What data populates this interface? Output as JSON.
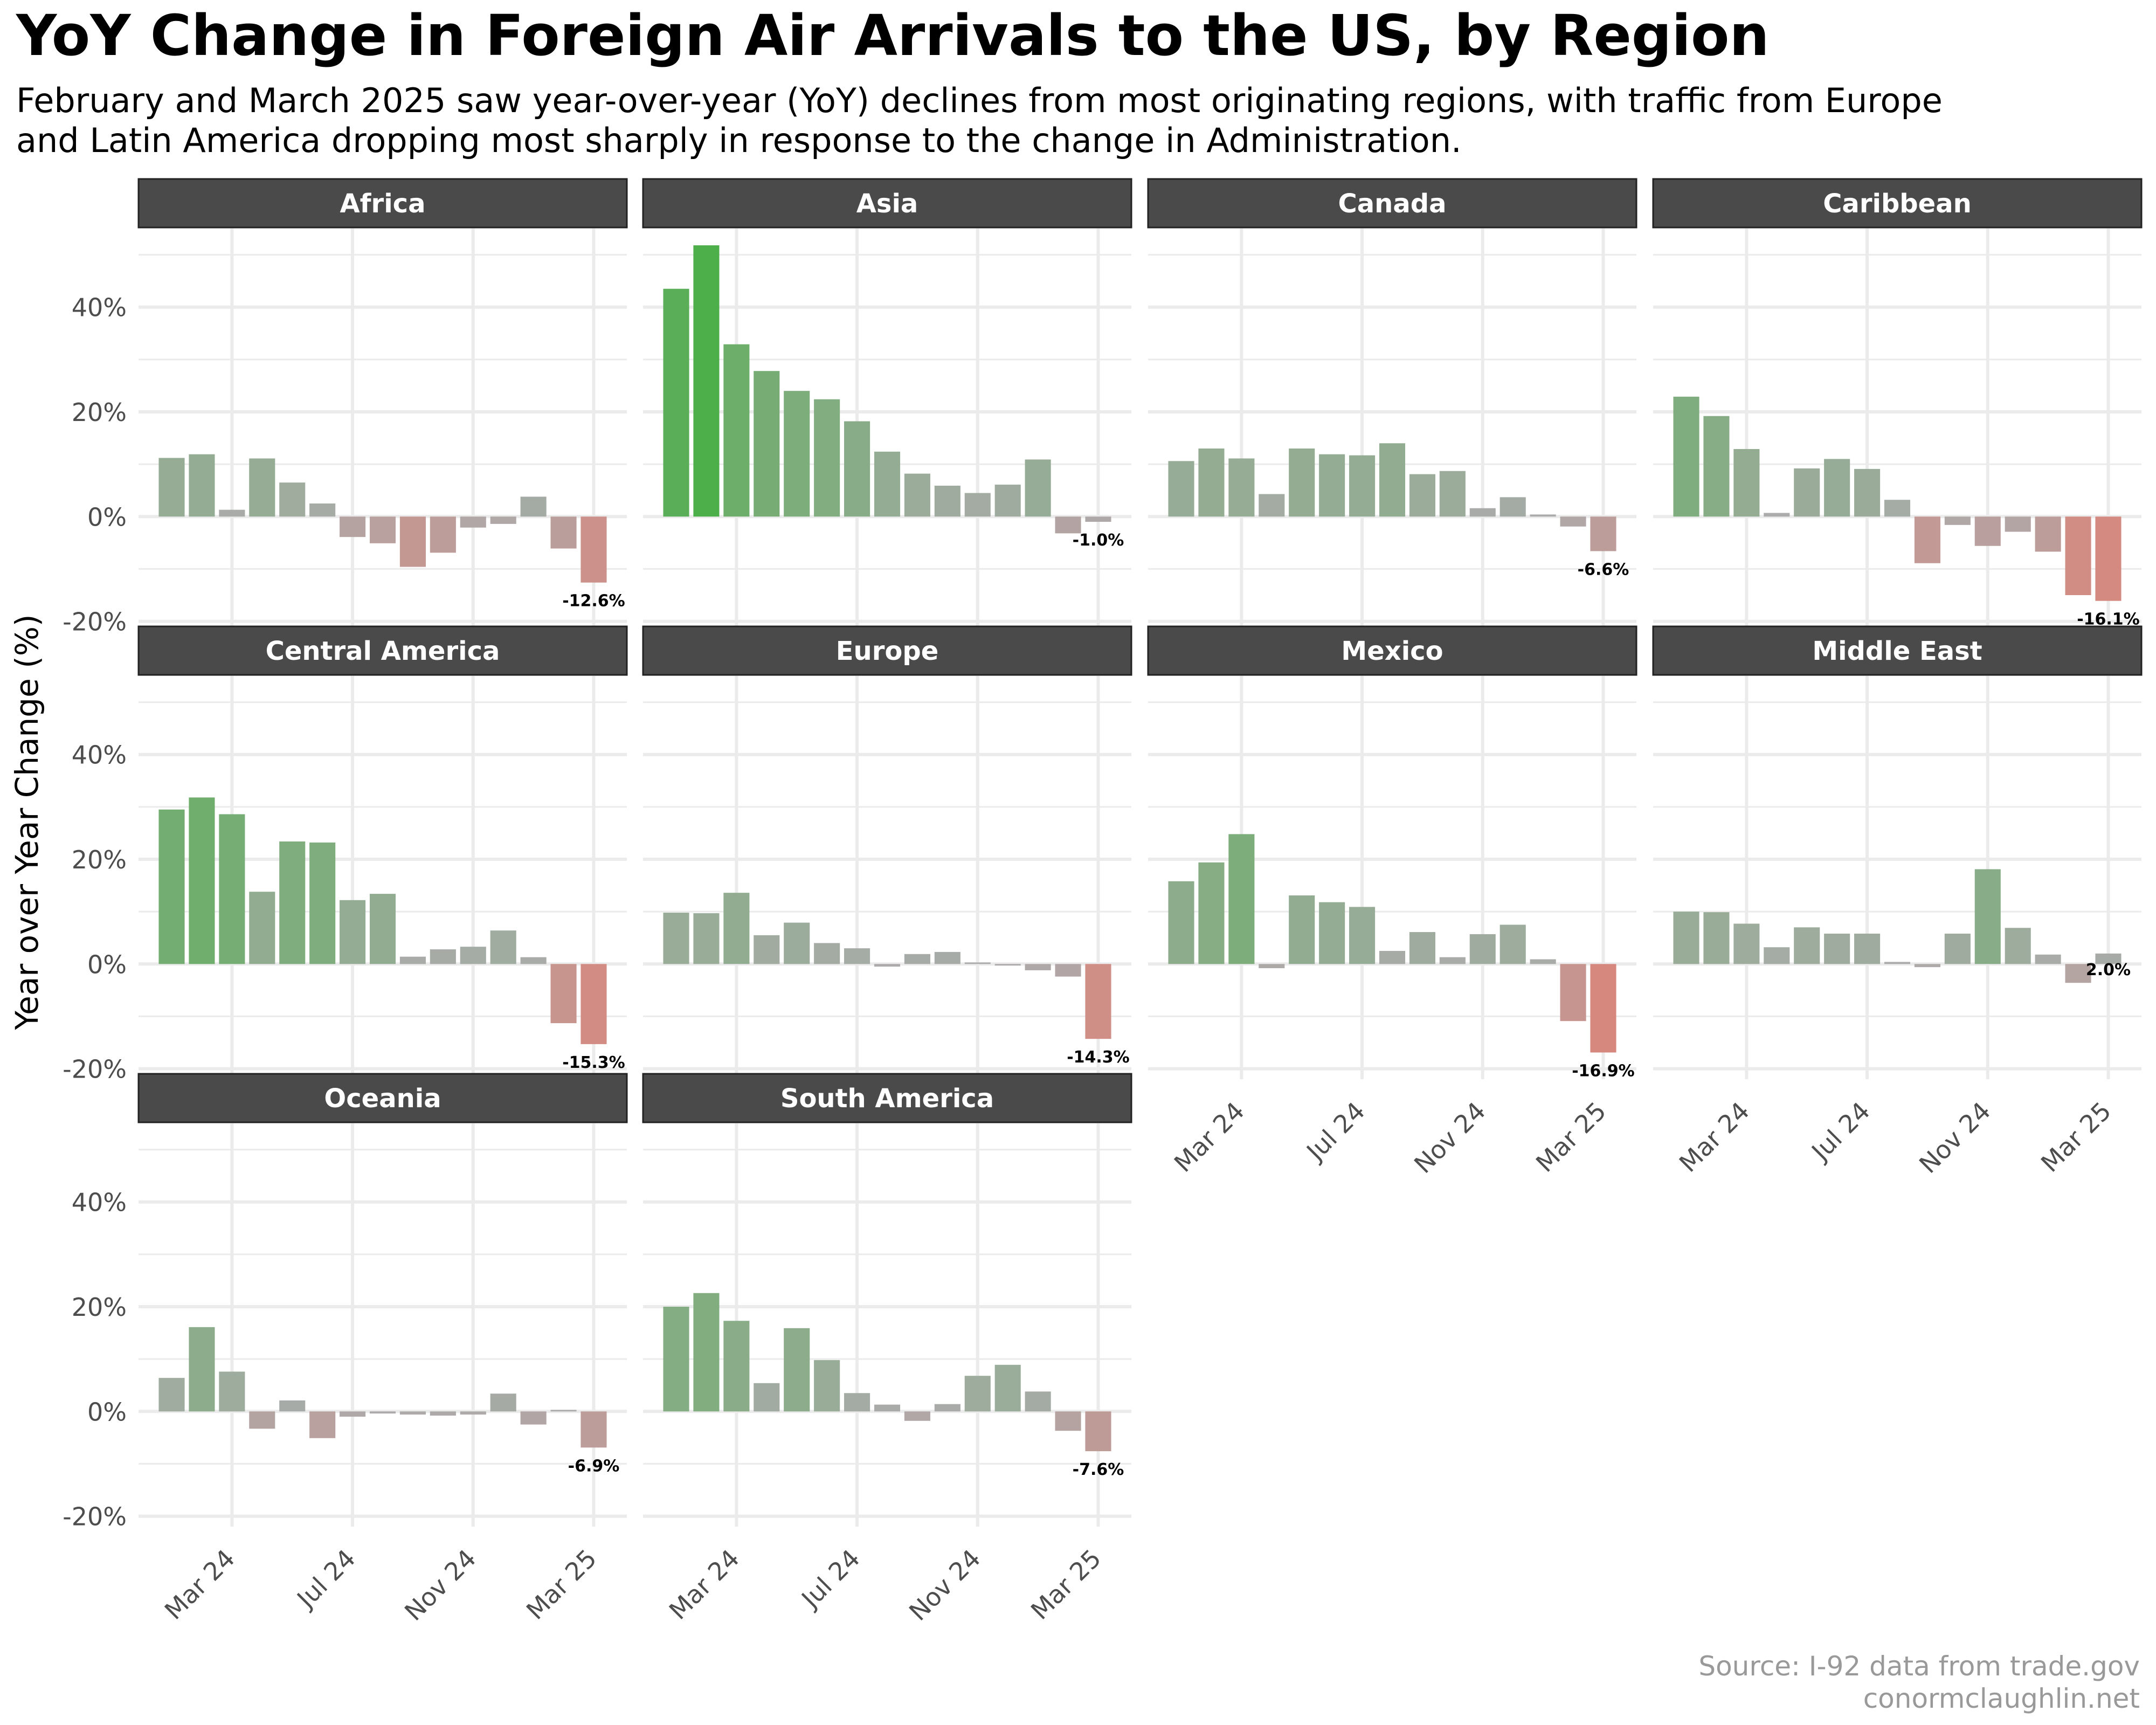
{
  "title": "YoY Change in Foreign Air Arrivals to the US, by Region",
  "subtitle": [
    "February and March 2025 saw year-over-year (YoY) declines from most originating regions, with traffic from Europe",
    "and Latin America dropping most sharply in response to the change in Administration."
  ],
  "caption": [
    "Source: I-92 data from trade.gov",
    "conormclaughlin.net"
  ],
  "colors": {
    "strip_bg": "#4a4a4a",
    "grid": "#ebebeb",
    "neutral": "#ababab",
    "positive": "#4daf4a",
    "negative": "#d6887f"
  },
  "chart_data": {
    "type": "bar",
    "facets_layout": "4 columns x 3 rows",
    "ylabel": "Year over Year Change (%)",
    "ylim": [
      -22,
      55
    ],
    "y_ticks": [
      -20,
      0,
      20,
      40
    ],
    "y_tick_labels": [
      "-20%",
      "0%",
      "20%",
      "40%"
    ],
    "categories": [
      "Jan 24",
      "Feb 24",
      "Mar 24",
      "Apr 24",
      "May 24",
      "Jun 24",
      "Jul 24",
      "Aug 24",
      "Sep 24",
      "Oct 24",
      "Nov 24",
      "Dec 24",
      "Jan 25",
      "Feb 25",
      "Mar 25"
    ],
    "x_ticks": [
      "Mar 24",
      "Jul 24",
      "Nov 24",
      "Mar 25"
    ],
    "series": [
      {
        "name": "Africa",
        "values": [
          11.2,
          11.9,
          1.3,
          11.1,
          6.5,
          2.5,
          -3.9,
          -5.1,
          -9.6,
          -6.9,
          -2.1,
          -1.4,
          3.8,
          -6.1,
          -12.6
        ],
        "last_label": "-12.6%"
      },
      {
        "name": "Asia",
        "values": [
          43.5,
          51.8,
          32.9,
          27.8,
          24.0,
          22.4,
          18.2,
          12.4,
          8.2,
          5.9,
          4.5,
          6.1,
          10.9,
          -3.2,
          -1.0
        ],
        "last_label": "-1.0%"
      },
      {
        "name": "Canada",
        "values": [
          10.6,
          13.0,
          11.1,
          4.3,
          13.0,
          11.9,
          11.7,
          14.0,
          8.1,
          8.7,
          1.6,
          3.7,
          0.4,
          -1.9,
          -6.6
        ],
        "last_label": "-6.6%"
      },
      {
        "name": "Caribbean",
        "values": [
          22.9,
          19.2,
          12.9,
          0.7,
          9.2,
          11.0,
          9.1,
          3.2,
          -8.9,
          -1.6,
          -5.6,
          -2.9,
          -6.7,
          -15.0,
          -16.1
        ],
        "last_label": "-16.1%"
      },
      {
        "name": "Central America",
        "values": [
          29.5,
          31.8,
          28.6,
          13.8,
          23.4,
          23.2,
          12.2,
          13.4,
          1.4,
          2.8,
          3.3,
          6.4,
          1.3,
          -11.3,
          -15.3
        ],
        "last_label": "-15.3%"
      },
      {
        "name": "Europe",
        "values": [
          9.8,
          9.7,
          13.6,
          5.5,
          7.9,
          4.0,
          3.0,
          -0.5,
          1.9,
          2.3,
          0.3,
          -0.3,
          -1.2,
          -2.4,
          -14.3
        ],
        "last_label": "-14.3%"
      },
      {
        "name": "Mexico",
        "values": [
          15.8,
          19.4,
          24.8,
          -0.8,
          13.1,
          11.8,
          10.9,
          2.5,
          6.1,
          1.3,
          5.7,
          7.5,
          0.9,
          -10.9,
          -16.9
        ],
        "last_label": "-16.9%"
      },
      {
        "name": "Middle East",
        "values": [
          10.0,
          9.9,
          7.7,
          3.2,
          7.0,
          5.8,
          5.8,
          0.4,
          -0.6,
          5.8,
          18.1,
          6.9,
          1.8,
          -3.6,
          2.0
        ],
        "last_label": "2.0%"
      },
      {
        "name": "Oceania",
        "values": [
          6.4,
          16.1,
          7.6,
          -3.3,
          2.1,
          -5.1,
          -1.0,
          -0.4,
          -0.6,
          -0.8,
          -0.6,
          3.4,
          -2.5,
          0.3,
          -6.9
        ],
        "last_label": "-6.9%"
      },
      {
        "name": "South America",
        "values": [
          20.0,
          22.6,
          17.3,
          5.4,
          15.9,
          9.8,
          3.5,
          1.3,
          -1.8,
          1.4,
          6.8,
          8.9,
          3.8,
          -3.7,
          -7.6
        ],
        "last_label": "-7.6%"
      }
    ]
  }
}
